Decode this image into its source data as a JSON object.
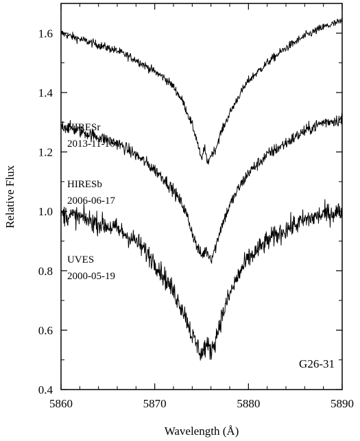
{
  "chart_data": {
    "type": "line",
    "title": "",
    "xlabel": "Wavelength (Å)",
    "ylabel": "Relative Flux",
    "xlim": [
      5860,
      5890
    ],
    "ylim": [
      0.4,
      1.7
    ],
    "xticks": [
      5860,
      5870,
      5880,
      5890
    ],
    "xtick_labels": [
      "5860",
      "5870",
      "5880",
      "5890"
    ],
    "yticks": [
      0.4,
      0.6,
      0.8,
      1.0,
      1.2,
      1.4,
      1.6
    ],
    "ytick_labels": [
      "0.4",
      "0.6",
      "0.8",
      "1.0",
      "1.2",
      "1.4",
      "1.6"
    ],
    "grid": false,
    "object_label": "G26-31",
    "series": [
      {
        "name": "HIRESr 2013-11-16",
        "label_line1": "HIRESr",
        "label_line2": "2013-11-16",
        "x": [
          5860,
          5862,
          5864,
          5866,
          5868,
          5870,
          5871,
          5872,
          5873,
          5873.5,
          5874,
          5874.5,
          5875,
          5875.3,
          5875.6,
          5876,
          5876.5,
          5877,
          5878,
          5879,
          5880,
          5882,
          5884,
          5886,
          5888,
          5890
        ],
        "y": [
          1.6,
          1.58,
          1.56,
          1.54,
          1.51,
          1.47,
          1.45,
          1.42,
          1.37,
          1.33,
          1.29,
          1.24,
          1.17,
          1.22,
          1.16,
          1.19,
          1.21,
          1.26,
          1.33,
          1.39,
          1.44,
          1.5,
          1.55,
          1.59,
          1.62,
          1.64
        ]
      },
      {
        "name": "HIRESb 2006-06-17",
        "label_line1": "HIRESb",
        "label_line2": "2006-06-17",
        "x": [
          5860,
          5862,
          5864,
          5866,
          5868,
          5870,
          5871,
          5872,
          5873,
          5873.5,
          5874,
          5874.5,
          5875,
          5875.5,
          5876,
          5876.5,
          5877,
          5878,
          5879,
          5880,
          5882,
          5884,
          5886,
          5888,
          5890
        ],
        "y": [
          1.29,
          1.27,
          1.25,
          1.23,
          1.19,
          1.14,
          1.11,
          1.07,
          1.02,
          0.98,
          0.93,
          0.88,
          0.85,
          0.87,
          0.84,
          0.88,
          0.94,
          1.02,
          1.08,
          1.13,
          1.19,
          1.23,
          1.27,
          1.3,
          1.31
        ]
      },
      {
        "name": "UVES 2000-05-19",
        "label_line1": "UVES",
        "label_line2": "2000-05-19",
        "x": [
          5860,
          5862,
          5864,
          5866,
          5868,
          5870,
          5871,
          5872,
          5873,
          5873.5,
          5874,
          5874.5,
          5875,
          5875.5,
          5876,
          5876.5,
          5877,
          5878,
          5879,
          5880,
          5882,
          5884,
          5886,
          5888,
          5890
        ],
        "y": [
          0.99,
          0.98,
          0.96,
          0.94,
          0.9,
          0.83,
          0.78,
          0.73,
          0.67,
          0.63,
          0.58,
          0.55,
          0.52,
          0.55,
          0.53,
          0.57,
          0.63,
          0.72,
          0.79,
          0.84,
          0.9,
          0.94,
          0.97,
          0.99,
          1.0
        ]
      }
    ]
  }
}
